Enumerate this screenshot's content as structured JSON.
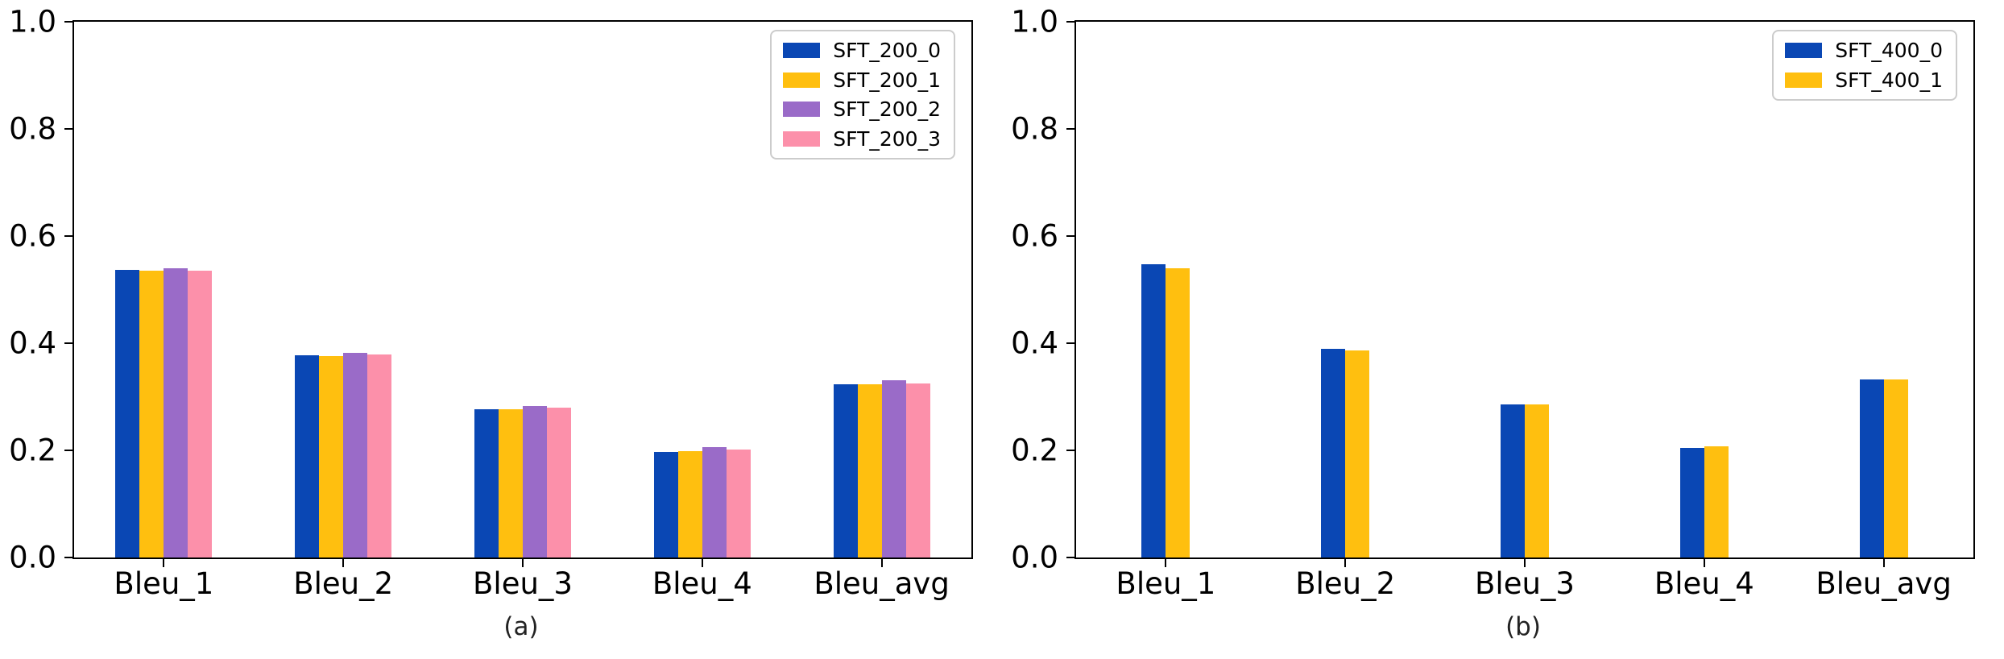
{
  "figure": {
    "background": "#ffffff",
    "axis_color": "#000000",
    "legend_border_color": "#cccccc"
  },
  "chart_data": [
    {
      "type": "bar",
      "caption": "(a)",
      "title": "",
      "xlabel": "",
      "ylabel": "",
      "ylim": [
        0.0,
        1.0
      ],
      "yticks": [
        0.0,
        0.2,
        0.4,
        0.6,
        0.8,
        1.0
      ],
      "grid": false,
      "legend_position": "upper right",
      "categories": [
        "Bleu_1",
        "Bleu_2",
        "Bleu_3",
        "Bleu_4",
        "Bleu_avg"
      ],
      "series": [
        {
          "name": "SFT_200_0",
          "color": "#0a47b4",
          "values": [
            0.537,
            0.378,
            0.277,
            0.197,
            0.324
          ]
        },
        {
          "name": "SFT_200_1",
          "color": "#ffbf0f",
          "values": [
            0.536,
            0.376,
            0.276,
            0.199,
            0.324
          ]
        },
        {
          "name": "SFT_200_2",
          "color": "#9a6bc8",
          "values": [
            0.54,
            0.382,
            0.283,
            0.206,
            0.331
          ]
        },
        {
          "name": "SFT_200_3",
          "color": "#fc90aa",
          "values": [
            0.535,
            0.379,
            0.279,
            0.201,
            0.325
          ]
        }
      ]
    },
    {
      "type": "bar",
      "caption": "(b)",
      "title": "",
      "xlabel": "",
      "ylabel": "",
      "ylim": [
        0.0,
        1.0
      ],
      "yticks": [
        0.0,
        0.2,
        0.4,
        0.6,
        0.8,
        1.0
      ],
      "grid": false,
      "legend_position": "upper right",
      "categories": [
        "Bleu_1",
        "Bleu_2",
        "Bleu_3",
        "Bleu_4",
        "Bleu_avg"
      ],
      "series": [
        {
          "name": "SFT_400_0",
          "color": "#0a47b4",
          "values": [
            0.547,
            0.389,
            0.285,
            0.205,
            0.333
          ]
        },
        {
          "name": "SFT_400_1",
          "color": "#ffbf0f",
          "values": [
            0.54,
            0.387,
            0.285,
            0.207,
            0.333
          ]
        }
      ]
    }
  ]
}
